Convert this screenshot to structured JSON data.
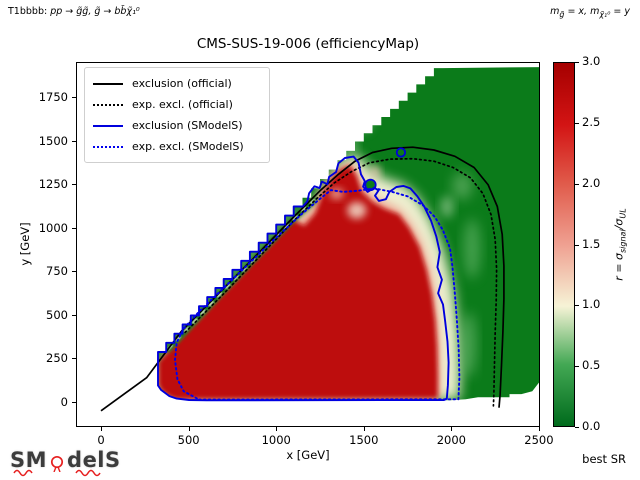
{
  "annotations": {
    "top_left_prefix": "T1bbbb: ",
    "top_left_math": "pp → g̃g̃, g̃ → bb̄χ̃₁⁰",
    "tr_m1": "m",
    "tr_s1": "g̃",
    "tr_mid": " = x, m",
    "tr_s2": "χ̃₁⁰",
    "tr_end": " = y"
  },
  "title": "CMS-SUS-19-006 (efficiencyMap)",
  "legend": {
    "items": [
      {
        "label": "exclusion (official)",
        "style": "black-solid"
      },
      {
        "label": "exp. excl. (official)",
        "style": "black-dotted"
      },
      {
        "label": "exclusion (SModelS)",
        "style": "blue-solid"
      },
      {
        "label": "exp. excl. (SModelS)",
        "style": "blue-dotted"
      }
    ]
  },
  "colorbar_label": {
    "r": "r = σ",
    "sub1": "signal",
    "slash": "/σ",
    "sub2": "UL"
  },
  "best_sr": "best SR",
  "logo": {
    "part1": "SM",
    "part2": "delS"
  },
  "chart_data": {
    "type": "heatmap",
    "title": "CMS-SUS-19-006 (efficiencyMap)",
    "xlabel": "x [GeV]",
    "ylabel": "y [GeV]",
    "xlim": [
      -143,
      2506
    ],
    "ylim": [
      -143,
      1951
    ],
    "x_ticks": [
      0,
      500,
      1000,
      1500,
      2000,
      2500
    ],
    "y_ticks": [
      0,
      250,
      500,
      750,
      1000,
      1250,
      1500,
      1750
    ],
    "grid": false,
    "legend_position": "upper left",
    "colorbar": {
      "min": 0.0,
      "max": 3.0,
      "ticks": [
        0.0,
        0.5,
        1.0,
        1.5,
        2.0,
        2.5,
        3.0
      ],
      "label": "r = sigma_signal/sigma_UL",
      "stops": [
        [
          0.0,
          "#006b1c"
        ],
        [
          0.17,
          "#43a854"
        ],
        [
          0.33,
          "#f6f3d6"
        ],
        [
          0.5,
          "#efa091"
        ],
        [
          0.67,
          "#e05a4a"
        ],
        [
          0.83,
          "#d31414"
        ],
        [
          1.0,
          "#a50000"
        ]
      ]
    },
    "map_region": {
      "fill": "#0b7b1a",
      "step": [
        1,
        5
      ],
      "points": [
        [
          325,
          90
        ],
        [
          325,
          235
        ],
        [
          700,
          655
        ],
        [
          1100,
          1065
        ],
        [
          1500,
          1495
        ],
        [
          1950,
          1916
        ],
        [
          2506,
          1922
        ],
        [
          2506,
          120
        ],
        [
          2462,
          62
        ],
        [
          2400,
          46
        ],
        [
          2332,
          46
        ],
        [
          2332,
          28
        ],
        [
          2152,
          28
        ],
        [
          2082,
          16
        ],
        [
          1992,
          10
        ],
        [
          502,
          10
        ],
        [
          432,
          18
        ],
        [
          390,
          32
        ],
        [
          342,
          68
        ]
      ]
    },
    "regions": [
      {
        "type": "poly",
        "fill": "#f6f3d6",
        "blur": 6,
        "opacity": 0.97,
        "points": [
          [
            336,
            240
          ],
          [
            500,
            430
          ],
          [
            700,
            650
          ],
          [
            900,
            862
          ],
          [
            1062,
            1032
          ],
          [
            1152,
            1092
          ],
          [
            1232,
            1152
          ],
          [
            1302,
            1292
          ],
          [
            1382,
            1402
          ],
          [
            1462,
            1422
          ],
          [
            1542,
            1332
          ],
          [
            1622,
            1282
          ],
          [
            1722,
            1252
          ],
          [
            1802,
            1182
          ],
          [
            1882,
            1052
          ],
          [
            1952,
            882
          ],
          [
            2012,
            652
          ],
          [
            2042,
            402
          ],
          [
            2052,
            152
          ],
          [
            2046,
            14
          ],
          [
            420,
            14
          ],
          [
            330,
            80
          ]
        ]
      },
      {
        "type": "poly",
        "fill": "#efa08f",
        "blur": 5,
        "opacity": 1,
        "points": [
          [
            332,
            180
          ],
          [
            420,
            290
          ],
          [
            560,
            450
          ],
          [
            760,
            660
          ],
          [
            960,
            872
          ],
          [
            1080,
            1002
          ],
          [
            1140,
            1052
          ],
          [
            1200,
            1102
          ],
          [
            1255,
            1210
          ],
          [
            1305,
            1282
          ],
          [
            1360,
            1342
          ],
          [
            1425,
            1375
          ],
          [
            1462,
            1330
          ],
          [
            1490,
            1240
          ],
          [
            1555,
            1180
          ],
          [
            1630,
            1140
          ],
          [
            1705,
            1105
          ],
          [
            1770,
            1022
          ],
          [
            1830,
            912
          ],
          [
            1872,
            782
          ],
          [
            1900,
            642
          ],
          [
            1918,
            492
          ],
          [
            1928,
            332
          ],
          [
            1930,
            170
          ],
          [
            1928,
            18
          ],
          [
            420,
            14
          ],
          [
            330,
            80
          ]
        ]
      },
      {
        "type": "poly",
        "fill": "#bd0707",
        "blur": 2.5,
        "opacity": 1,
        "points": [
          [
            328,
            100
          ],
          [
            328,
            232
          ],
          [
            400,
            312
          ],
          [
            470,
            392
          ],
          [
            560,
            482
          ],
          [
            660,
            592
          ],
          [
            760,
            692
          ],
          [
            860,
            802
          ],
          [
            960,
            902
          ],
          [
            1040,
            992
          ],
          [
            1096,
            1048
          ],
          [
            1160,
            1012
          ],
          [
            1222,
            1082
          ],
          [
            1268,
            1202
          ],
          [
            1308,
            1268
          ],
          [
            1360,
            1330
          ],
          [
            1420,
            1358
          ],
          [
            1458,
            1298
          ],
          [
            1488,
            1208
          ],
          [
            1550,
            1148
          ],
          [
            1620,
            1108
          ],
          [
            1700,
            1078
          ],
          [
            1758,
            1000
          ],
          [
            1818,
            888
          ],
          [
            1858,
            758
          ],
          [
            1888,
            618
          ],
          [
            1908,
            468
          ],
          [
            1918,
            318
          ],
          [
            1922,
            158
          ],
          [
            1922,
            22
          ],
          [
            430,
            16
          ],
          [
            392,
            30
          ],
          [
            344,
            66
          ]
        ]
      },
      {
        "type": "ellipse",
        "fill": "#f2dcca",
        "blur": 4,
        "opacity": 0.85,
        "cx": 1460,
        "cy": 1100,
        "rx": 55,
        "ry": 48
      },
      {
        "type": "ellipse",
        "fill": "#efb4a2",
        "blur": 4,
        "opacity": 0.8,
        "cx": 1345,
        "cy": 1195,
        "rx": 42,
        "ry": 32
      },
      {
        "type": "ellipse",
        "fill": "#f0c7b5",
        "blur": 4,
        "opacity": 0.7,
        "cx": 1565,
        "cy": 1320,
        "rx": 30,
        "ry": 40
      },
      {
        "type": "stroke",
        "stroke": "#15791c",
        "width": 6,
        "blur": 1.5,
        "opacity": 1,
        "points": [
          [
            385,
            305
          ],
          [
            700,
            642
          ],
          [
            1000,
            952
          ],
          [
            1148,
            1102
          ],
          [
            1215,
            1158
          ]
        ]
      },
      {
        "type": "stroke",
        "stroke": "#e9f0d4",
        "width": 2.2,
        "blur": 0.8,
        "opacity": 0.9,
        "dash": "4.5 7.5",
        "points": [
          [
            385,
            305
          ],
          [
            700,
            642
          ],
          [
            1000,
            952
          ],
          [
            1148,
            1102
          ],
          [
            1215,
            1158
          ]
        ]
      },
      {
        "type": "ellipse",
        "fill": "#0d7c1b",
        "blur": 0,
        "opacity": 1,
        "cx": 1538,
        "cy": 1246,
        "rx": 26,
        "ry": 26
      },
      {
        "type": "ellipse",
        "fill": "#0d7c1b",
        "blur": 0,
        "opacity": 1,
        "cx": 1712,
        "cy": 1432,
        "rx": 20,
        "ry": 20
      },
      {
        "type": "ellipse",
        "fill": "#b8dfae",
        "blur": 5,
        "opacity": 0.5,
        "cx": 1500,
        "cy": 1645,
        "rx": 55,
        "ry": 95
      },
      {
        "type": "ellipse",
        "fill": "#c8e6bc",
        "blur": 5,
        "opacity": 0.45,
        "cx": 1428,
        "cy": 1478,
        "rx": 36,
        "ry": 56
      },
      {
        "type": "ellipse",
        "fill": "#7cc47e",
        "blur": 6,
        "opacity": 0.5,
        "cx": 2118,
        "cy": 880,
        "rx": 48,
        "ry": 170
      },
      {
        "type": "ellipse",
        "fill": "#a6d79e",
        "blur": 6,
        "opacity": 0.4,
        "cx": 2062,
        "cy": 1240,
        "rx": 58,
        "ry": 78
      },
      {
        "type": "ellipse",
        "fill": "#96d295",
        "blur": 6,
        "opacity": 0.45,
        "cx": 2100,
        "cy": 330,
        "rx": 42,
        "ry": 185
      },
      {
        "type": "ellipse",
        "fill": "#cde8c2",
        "blur": 5,
        "opacity": 0.5,
        "cx": 1975,
        "cy": 1120,
        "rx": 38,
        "ry": 62
      }
    ],
    "contours": [
      {
        "name": "exclusion (official)",
        "color": "#000000",
        "style": "solid",
        "width": 1.7,
        "points": [
          [
            0,
            -50
          ],
          [
            260,
            140
          ],
          [
            460,
            408
          ],
          [
            700,
            652
          ],
          [
            900,
            856
          ],
          [
            1100,
            1062
          ],
          [
            1250,
            1212
          ],
          [
            1350,
            1302
          ],
          [
            1450,
            1382
          ],
          [
            1550,
            1432
          ],
          [
            1660,
            1456
          ],
          [
            1780,
            1462
          ],
          [
            1900,
            1446
          ],
          [
            2020,
            1410
          ],
          [
            2130,
            1346
          ],
          [
            2210,
            1246
          ],
          [
            2262,
            1122
          ],
          [
            2290,
            962
          ],
          [
            2300,
            782
          ],
          [
            2300,
            592
          ],
          [
            2294,
            402
          ],
          [
            2286,
            212
          ],
          [
            2278,
            42
          ],
          [
            2272,
            -32
          ]
        ]
      },
      {
        "name": "exp. excl. (official)",
        "color": "#000000",
        "style": "dotted",
        "width": 1.7,
        "points": [
          [
            480,
            400
          ],
          [
            700,
            622
          ],
          [
            900,
            830
          ],
          [
            1100,
            1040
          ],
          [
            1230,
            1166
          ],
          [
            1330,
            1256
          ],
          [
            1430,
            1322
          ],
          [
            1530,
            1372
          ],
          [
            1650,
            1394
          ],
          [
            1780,
            1396
          ],
          [
            1900,
            1382
          ],
          [
            2010,
            1346
          ],
          [
            2110,
            1286
          ],
          [
            2180,
            1196
          ],
          [
            2226,
            1076
          ],
          [
            2250,
            932
          ],
          [
            2258,
            762
          ],
          [
            2256,
            582
          ],
          [
            2250,
            402
          ],
          [
            2246,
            222
          ],
          [
            2242,
            32
          ],
          [
            2240,
            -22
          ]
        ]
      },
      {
        "name": "exclusion (SModelS)",
        "color": "#0000dd",
        "style": "solid",
        "width": 1.9,
        "closed": true,
        "step": [
          2,
          5
        ],
        "points": [
          [
            342,
            70
          ],
          [
            325,
            95
          ],
          [
            325,
            235
          ],
          [
            700,
            655
          ],
          [
            1100,
            1070
          ],
          [
            1152,
            1122
          ],
          [
            1178,
            1152
          ],
          [
            1188,
            1198
          ],
          [
            1218,
            1238
          ],
          [
            1248,
            1228
          ],
          [
            1260,
            1265
          ],
          [
            1292,
            1250
          ],
          [
            1302,
            1292
          ],
          [
            1342,
            1320
          ],
          [
            1355,
            1370
          ],
          [
            1392,
            1400
          ],
          [
            1442,
            1408
          ],
          [
            1470,
            1374
          ],
          [
            1484,
            1306
          ],
          [
            1506,
            1268
          ],
          [
            1496,
            1236
          ],
          [
            1522,
            1206
          ],
          [
            1560,
            1230
          ],
          [
            1584,
            1214
          ],
          [
            1564,
            1184
          ],
          [
            1586,
            1154
          ],
          [
            1626,
            1164
          ],
          [
            1646,
            1206
          ],
          [
            1686,
            1234
          ],
          [
            1726,
            1240
          ],
          [
            1766,
            1226
          ],
          [
            1806,
            1180
          ],
          [
            1846,
            1120
          ],
          [
            1884,
            1040
          ],
          [
            1914,
            950
          ],
          [
            1934,
            860
          ],
          [
            1920,
            774
          ],
          [
            1946,
            702
          ],
          [
            1924,
            624
          ],
          [
            1952,
            560
          ],
          [
            1964,
            467
          ],
          [
            1978,
            347
          ],
          [
            1984,
            227
          ],
          [
            1980,
            97
          ],
          [
            1974,
            20
          ],
          [
            1958,
            12
          ],
          [
            602,
            10
          ],
          [
            502,
            12
          ],
          [
            432,
            20
          ],
          [
            390,
            34
          ]
        ]
      },
      {
        "name": "exp. excl. (SModelS)",
        "color": "#0000ee",
        "style": "dotted",
        "width": 1.9,
        "closed": true,
        "points": [
          [
            560,
            14
          ],
          [
            2040,
            16
          ],
          [
            2046,
            140
          ],
          [
            2042,
            300
          ],
          [
            2032,
            460
          ],
          [
            2020,
            620
          ],
          [
            2006,
            780
          ],
          [
            1992,
            882
          ],
          [
            1952,
            985
          ],
          [
            1906,
            1062
          ],
          [
            1842,
            1126
          ],
          [
            1752,
            1180
          ],
          [
            1662,
            1206
          ],
          [
            1562,
            1226
          ],
          [
            1462,
            1212
          ],
          [
            1382,
            1206
          ],
          [
            1312,
            1216
          ],
          [
            1262,
            1176
          ],
          [
            1202,
            1126
          ],
          [
            1142,
            1076
          ],
          [
            1002,
            946
          ],
          [
            852,
            802
          ],
          [
            702,
            656
          ],
          [
            562,
            522
          ],
          [
            472,
            422
          ],
          [
            432,
            342
          ],
          [
            422,
            242
          ],
          [
            436,
            132
          ],
          [
            472,
            62
          ]
        ]
      }
    ],
    "loops": [
      {
        "cx": 1538,
        "cy": 1246,
        "r": 30,
        "color": "#0000dd"
      },
      {
        "cx": 1712,
        "cy": 1432,
        "r": 24,
        "color": "#0000dd"
      }
    ]
  }
}
